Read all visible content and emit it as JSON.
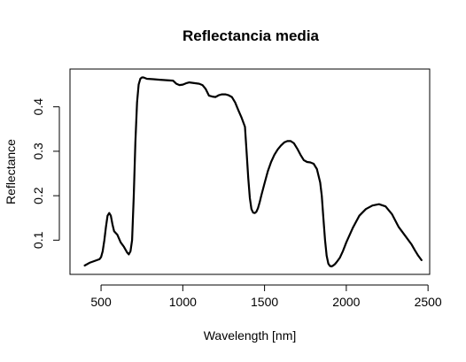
{
  "chart_data": {
    "type": "line",
    "title": "Reflectancia media",
    "xlabel": "Wavelength [nm]",
    "ylabel": "Reflectance",
    "xlim": [
      310,
      2510
    ],
    "ylim": [
      0.023,
      0.485
    ],
    "xticks": [
      500,
      1000,
      1500,
      2000,
      2500
    ],
    "yticks": [
      0.1,
      0.2,
      0.3,
      0.4
    ],
    "xtick_labels": [
      "500",
      "1000",
      "1500",
      "2000",
      "2500"
    ],
    "ytick_labels": [
      "0.1",
      "0.2",
      "0.3",
      "0.4"
    ],
    "grid": false,
    "series": [
      {
        "color": "#000000",
        "x": [
          400,
          430,
          460,
          490,
          500,
          510,
          520,
          530,
          540,
          550,
          560,
          570,
          580,
          600,
          620,
          640,
          660,
          670,
          680,
          690,
          700,
          710,
          720,
          730,
          740,
          750,
          760,
          780,
          820,
          860,
          900,
          940,
          960,
          980,
          1000,
          1020,
          1040,
          1060,
          1080,
          1100,
          1120,
          1140,
          1160,
          1180,
          1200,
          1220,
          1240,
          1260,
          1280,
          1300,
          1320,
          1340,
          1360,
          1380,
          1390,
          1400,
          1410,
          1420,
          1430,
          1440,
          1450,
          1460,
          1470,
          1480,
          1500,
          1520,
          1540,
          1560,
          1580,
          1600,
          1620,
          1640,
          1660,
          1680,
          1700,
          1720,
          1740,
          1760,
          1780,
          1800,
          1820,
          1840,
          1850,
          1860,
          1870,
          1880,
          1890,
          1900,
          1910,
          1920,
          1930,
          1940,
          1960,
          1980,
          2000,
          2040,
          2080,
          2120,
          2160,
          2200,
          2240,
          2280,
          2320,
          2360,
          2400,
          2420,
          2440,
          2460
        ],
        "y": [
          0.043,
          0.049,
          0.053,
          0.057,
          0.062,
          0.075,
          0.1,
          0.13,
          0.155,
          0.161,
          0.155,
          0.135,
          0.12,
          0.112,
          0.095,
          0.085,
          0.072,
          0.068,
          0.075,
          0.1,
          0.2,
          0.32,
          0.41,
          0.45,
          0.463,
          0.466,
          0.466,
          0.463,
          0.462,
          0.461,
          0.46,
          0.459,
          0.452,
          0.449,
          0.45,
          0.453,
          0.455,
          0.454,
          0.453,
          0.452,
          0.449,
          0.44,
          0.425,
          0.423,
          0.422,
          0.426,
          0.428,
          0.428,
          0.426,
          0.422,
          0.41,
          0.392,
          0.375,
          0.355,
          0.3,
          0.24,
          0.195,
          0.17,
          0.162,
          0.161,
          0.164,
          0.172,
          0.185,
          0.2,
          0.228,
          0.255,
          0.276,
          0.292,
          0.304,
          0.313,
          0.32,
          0.323,
          0.323,
          0.318,
          0.306,
          0.292,
          0.28,
          0.276,
          0.275,
          0.272,
          0.26,
          0.23,
          0.2,
          0.15,
          0.1,
          0.065,
          0.047,
          0.042,
          0.041,
          0.043,
          0.046,
          0.05,
          0.06,
          0.076,
          0.095,
          0.128,
          0.155,
          0.17,
          0.178,
          0.181,
          0.176,
          0.158,
          0.13,
          0.11,
          0.09,
          0.077,
          0.065,
          0.055
        ]
      }
    ]
  }
}
